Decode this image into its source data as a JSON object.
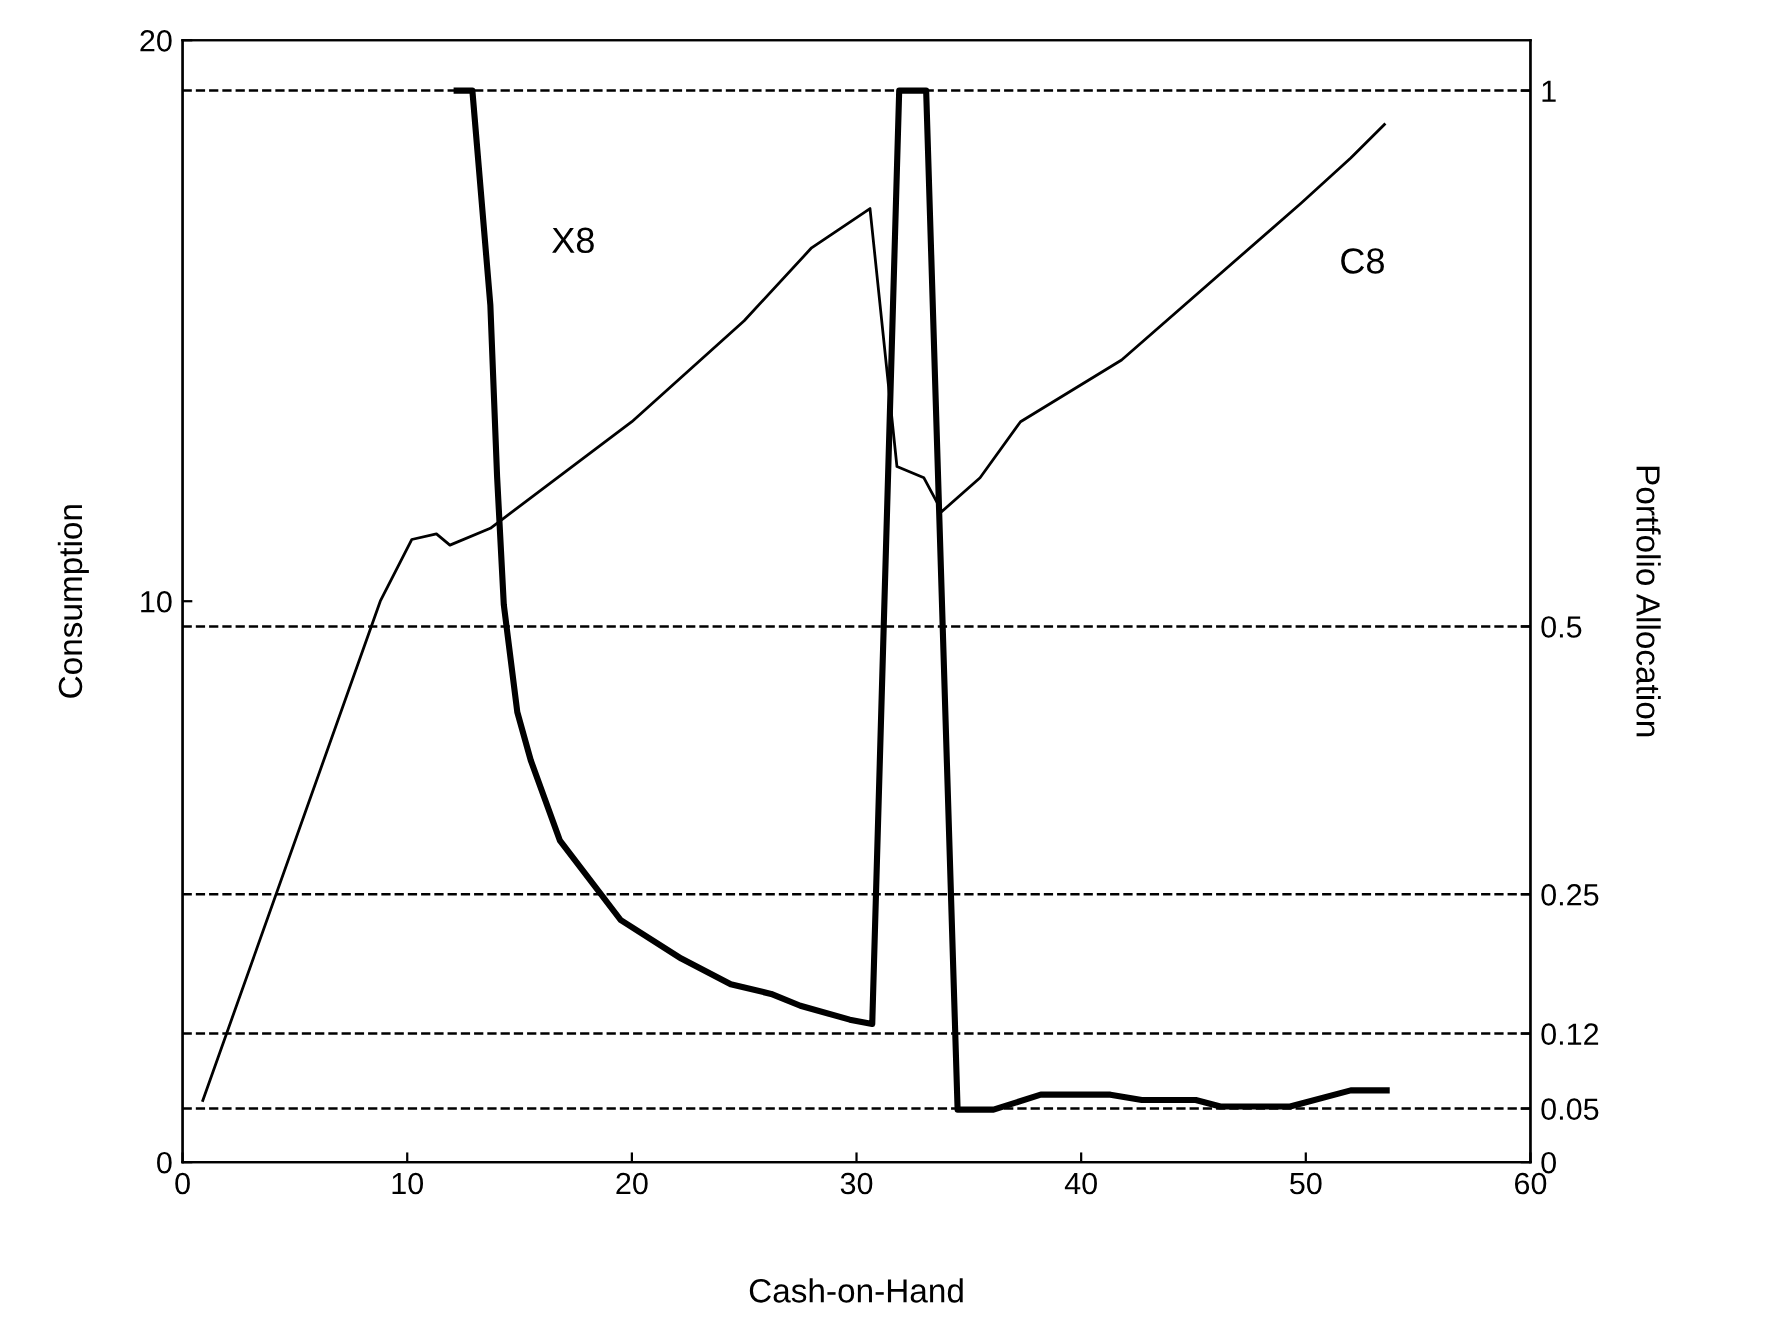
{
  "chart_data": {
    "type": "line",
    "xlabel": "Cash-on-Hand",
    "ylabel": "Consumption",
    "y2label": "Portfolio Allocation",
    "xlim": [
      0,
      60
    ],
    "xticks": [
      0,
      10,
      20,
      30,
      40,
      50,
      60
    ],
    "ylim": [
      0,
      20
    ],
    "yticks": [
      0,
      10,
      20
    ],
    "y2lim": [
      0,
      1.047
    ],
    "y2ticks": [
      0,
      0.05,
      0.12,
      0.25,
      0.5,
      1
    ],
    "legend": false,
    "marker": "none",
    "line_style": "solid",
    "series": [
      {
        "name": "C8",
        "color": "#000000",
        "x": [
          0.9,
          8.8,
          10.2,
          11.3,
          11.9,
          13.7,
          20,
          25,
          28,
          30.6,
          31.8,
          33.0,
          33.8,
          35.5,
          37.3,
          41.8,
          49.8,
          52,
          53.5
        ],
        "values": [
          1.1,
          10,
          11.1,
          11.2,
          11.0,
          11.3,
          13.2,
          15.0,
          16.3,
          17.0,
          12.4,
          12.2,
          11.6,
          12.2,
          13.2,
          14.3,
          17.1,
          17.9,
          18.5
        ]
      },
      {
        "name": "X8",
        "color": "#000000",
        "axis": "y2",
        "x": [
          12.2,
          12.9,
          13.7,
          14.0,
          14.3,
          14.9,
          15.5,
          16.8,
          19.5,
          22.2,
          24.4,
          26.2,
          27.5,
          29.7,
          30.7,
          31.9,
          33.1,
          34.5,
          36.1,
          38.2,
          41.3,
          42.7,
          45.1,
          46.2,
          49.3,
          52,
          53.6
        ],
        "values": [
          1.0,
          1.0,
          0.8,
          0.64,
          0.52,
          0.42,
          0.375,
          0.3,
          0.226,
          0.19,
          0.166,
          0.157,
          0.146,
          0.133,
          0.129,
          1.0,
          1.0,
          0.049,
          0.049,
          0.063,
          0.063,
          0.058,
          0.058,
          0.052,
          0.052,
          0.067,
          0.067
        ]
      }
    ],
    "ref_lines": [
      {
        "axis": "y2",
        "value": 1,
        "color": "#000000",
        "line_style": "dashed"
      },
      {
        "axis": "y2",
        "value": 0.5,
        "color": "#000000",
        "line_style": "dashed"
      },
      {
        "axis": "y2",
        "value": 0.25,
        "color": "#000000",
        "line_style": "dashed"
      },
      {
        "axis": "y2",
        "value": 0.12,
        "color": "#000000",
        "line_style": "dashed"
      },
      {
        "axis": "y2",
        "value": 0.05,
        "color": "#000000",
        "line_style": "dashed"
      }
    ]
  }
}
